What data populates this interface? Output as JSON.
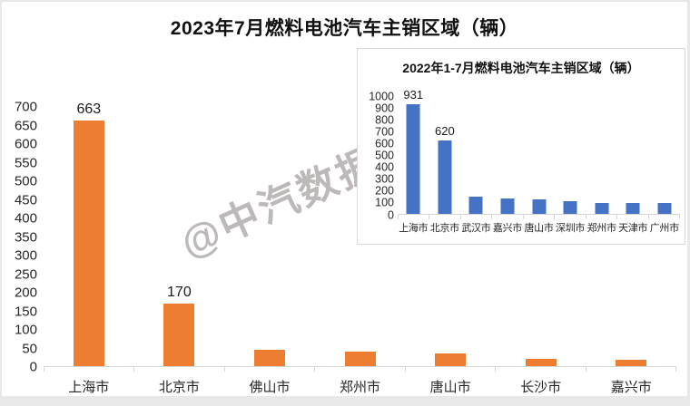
{
  "watermark": {
    "text": "@中汽数据",
    "color": "#867f7d"
  },
  "chart_data": [
    {
      "id": "main",
      "type": "bar",
      "title": "2023年7月燃料电池汽车主销区域（辆）",
      "categories": [
        "上海市",
        "北京市",
        "佛山市",
        "郑州市",
        "唐山市",
        "长沙市",
        "嘉兴市"
      ],
      "values": [
        663,
        170,
        45,
        38,
        35,
        20,
        17
      ],
      "data_labels": [
        "663",
        "170",
        "",
        "",
        "",
        "",
        ""
      ],
      "bar_color": "#ED7D31",
      "xlabel": "",
      "ylabel": "",
      "ylim": [
        0,
        700
      ],
      "ytick_step": 50,
      "grid": false,
      "legend": "none"
    },
    {
      "id": "inset",
      "type": "bar",
      "title": "2022年1-7月燃料电池汽车主销区域（辆）",
      "categories": [
        "上海市",
        "北京市",
        "武汉市",
        "嘉兴市",
        "唐山市",
        "深圳市",
        "郑州市",
        "天津市",
        "广州市"
      ],
      "values": [
        931,
        620,
        150,
        130,
        120,
        110,
        95,
        95,
        93
      ],
      "data_labels": [
        "931",
        "620",
        "",
        "",
        "",
        "",
        "",
        "",
        ""
      ],
      "bar_color": "#4472C4",
      "xlabel": "",
      "ylabel": "",
      "ylim": [
        0,
        1000
      ],
      "ytick_step": 100,
      "grid": false,
      "legend": "none"
    }
  ]
}
